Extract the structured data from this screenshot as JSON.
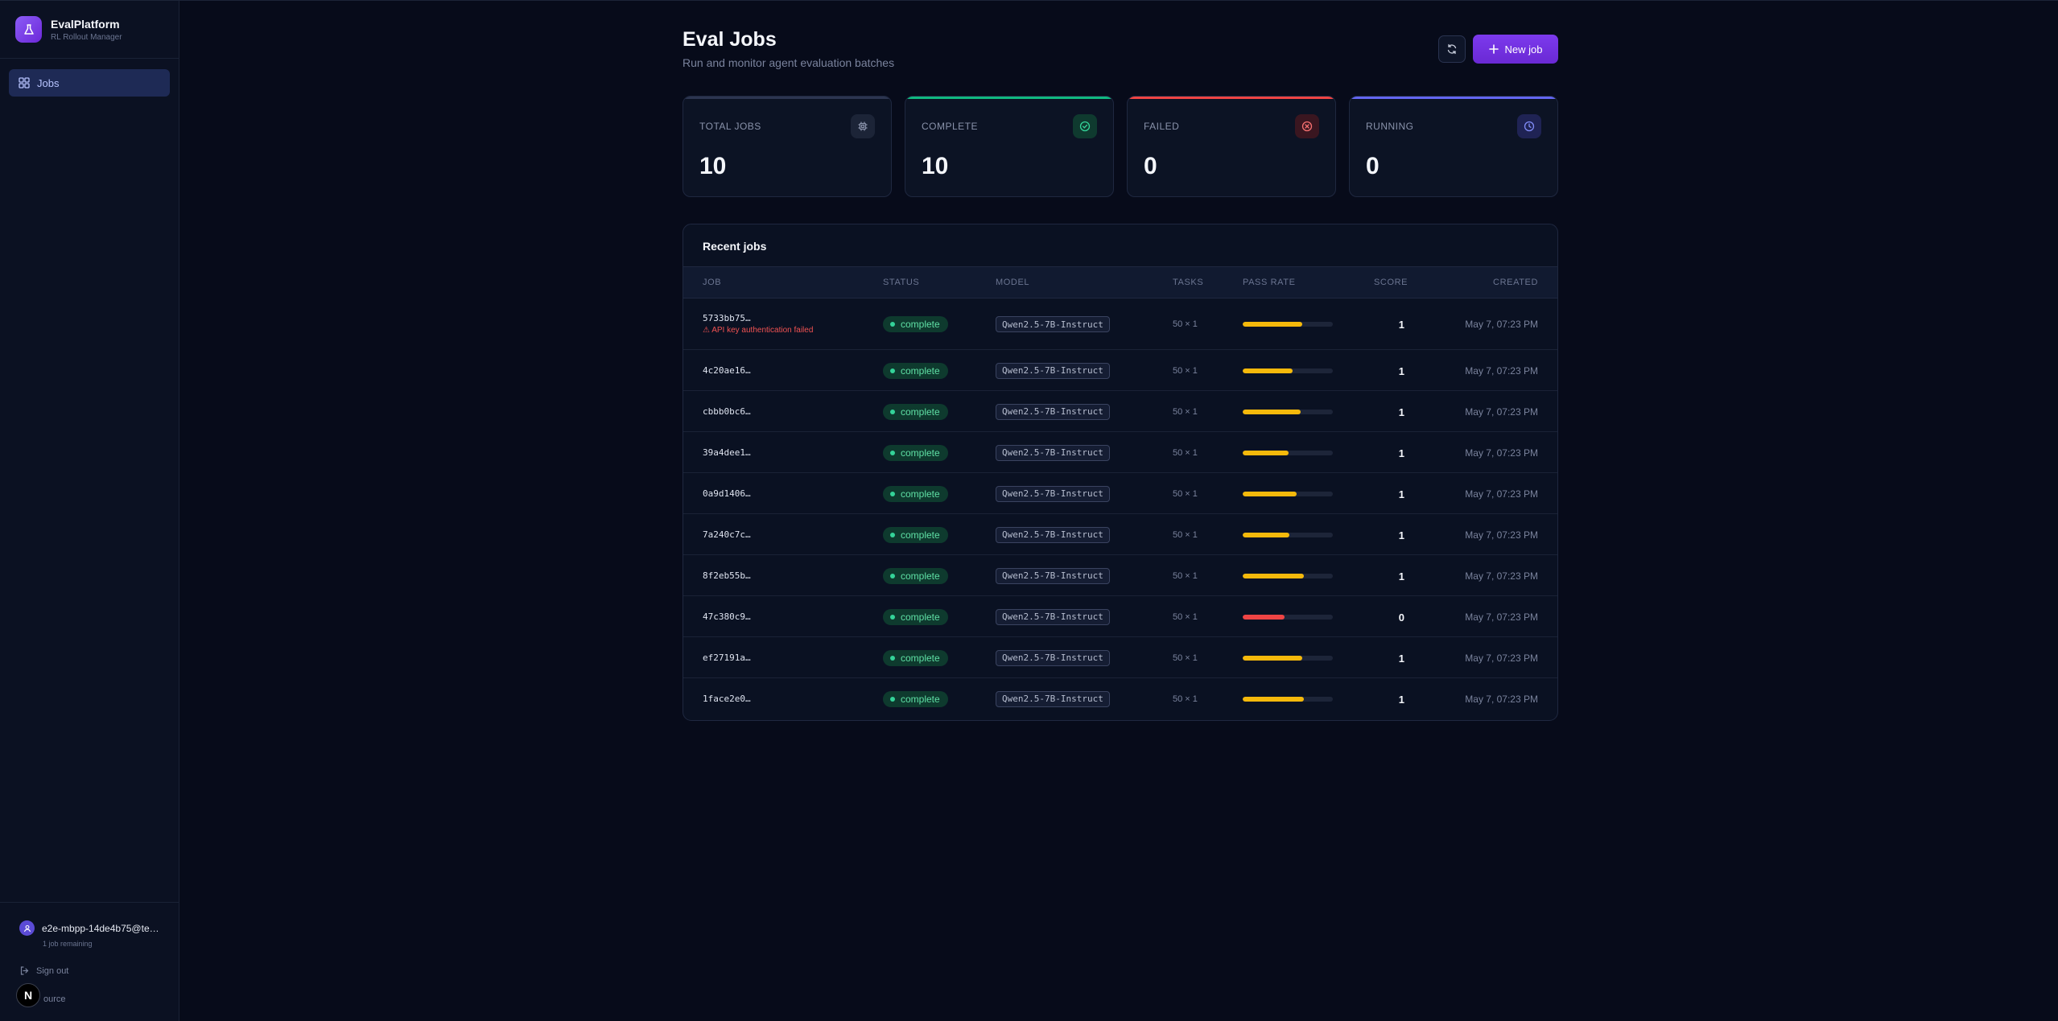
{
  "sidebar": {
    "brand_title": "EvalPlatform",
    "brand_subtitle": "RL Rollout Manager",
    "nav": [
      {
        "label": "Jobs",
        "icon": "grid-icon"
      }
    ],
    "user_email": "e2e-mbpp-14de4b75@te…",
    "user_meta": "1 job remaining",
    "sign_out": "Sign out",
    "source": "ource",
    "badge": "N"
  },
  "header": {
    "title": "Eval Jobs",
    "subtitle": "Run and monitor agent evaluation batches",
    "new_job": "New job"
  },
  "stats": [
    {
      "label": "TOTAL JOBS",
      "value": "10",
      "accent": "#2c3550",
      "icon": "chip-icon",
      "icon_color": "#8a93ab",
      "icon_bg": "#1c2437"
    },
    {
      "label": "COMPLETE",
      "value": "10",
      "accent": "#10b981",
      "icon": "check-circle-icon",
      "icon_color": "#34d399",
      "icon_bg": "#0f3a2f"
    },
    {
      "label": "FAILED",
      "value": "0",
      "accent": "#ef4444",
      "icon": "x-circle-icon",
      "icon_color": "#f87171",
      "icon_bg": "#3a1620"
    },
    {
      "label": "RUNNING",
      "value": "0",
      "accent": "#6366f1",
      "icon": "clock-icon",
      "icon_color": "#818cf8",
      "icon_bg": "#1f2354"
    }
  ],
  "table": {
    "title": "Recent jobs",
    "columns": [
      "JOB",
      "STATUS",
      "MODEL",
      "TASKS",
      "PASS RATE",
      "SCORE",
      "CREATED"
    ],
    "rows": [
      {
        "job": "5733bb75…",
        "error": "⚠ API key authentication failed",
        "status": "complete",
        "model": "Qwen2.5-7B-Instruct",
        "tasks": "50 × 1",
        "pass_rate": 0.66,
        "bar_color": "#f5b90b",
        "score": "1",
        "created": "May 7, 07:23 PM"
      },
      {
        "job": "4c20ae16…",
        "error": "",
        "status": "complete",
        "model": "Qwen2.5-7B-Instruct",
        "tasks": "50 × 1",
        "pass_rate": 0.55,
        "bar_color": "#f5b90b",
        "score": "1",
        "created": "May 7, 07:23 PM"
      },
      {
        "job": "cbbb0bc6…",
        "error": "",
        "status": "complete",
        "model": "Qwen2.5-7B-Instruct",
        "tasks": "50 × 1",
        "pass_rate": 0.64,
        "bar_color": "#f5b90b",
        "score": "1",
        "created": "May 7, 07:23 PM"
      },
      {
        "job": "39a4dee1…",
        "error": "",
        "status": "complete",
        "model": "Qwen2.5-7B-Instruct",
        "tasks": "50 × 1",
        "pass_rate": 0.51,
        "bar_color": "#f5b90b",
        "score": "1",
        "created": "May 7, 07:23 PM"
      },
      {
        "job": "0a9d1406…",
        "error": "",
        "status": "complete",
        "model": "Qwen2.5-7B-Instruct",
        "tasks": "50 × 1",
        "pass_rate": 0.6,
        "bar_color": "#f5b90b",
        "score": "1",
        "created": "May 7, 07:23 PM"
      },
      {
        "job": "7a240c7c…",
        "error": "",
        "status": "complete",
        "model": "Qwen2.5-7B-Instruct",
        "tasks": "50 × 1",
        "pass_rate": 0.52,
        "bar_color": "#f5b90b",
        "score": "1",
        "created": "May 7, 07:23 PM"
      },
      {
        "job": "8f2eb55b…",
        "error": "",
        "status": "complete",
        "model": "Qwen2.5-7B-Instruct",
        "tasks": "50 × 1",
        "pass_rate": 0.68,
        "bar_color": "#f5b90b",
        "score": "1",
        "created": "May 7, 07:23 PM"
      },
      {
        "job": "47c380c9…",
        "error": "",
        "status": "complete",
        "model": "Qwen2.5-7B-Instruct",
        "tasks": "50 × 1",
        "pass_rate": 0.46,
        "bar_color": "#ef4444",
        "score": "0",
        "created": "May 7, 07:23 PM"
      },
      {
        "job": "ef27191a…",
        "error": "",
        "status": "complete",
        "model": "Qwen2.5-7B-Instruct",
        "tasks": "50 × 1",
        "pass_rate": 0.66,
        "bar_color": "#f5b90b",
        "score": "1",
        "created": "May 7, 07:23 PM"
      },
      {
        "job": "1face2e0…",
        "error": "",
        "status": "complete",
        "model": "Qwen2.5-7B-Instruct",
        "tasks": "50 × 1",
        "pass_rate": 0.68,
        "bar_color": "#f5b90b",
        "score": "1",
        "created": "May 7, 07:23 PM"
      }
    ]
  }
}
